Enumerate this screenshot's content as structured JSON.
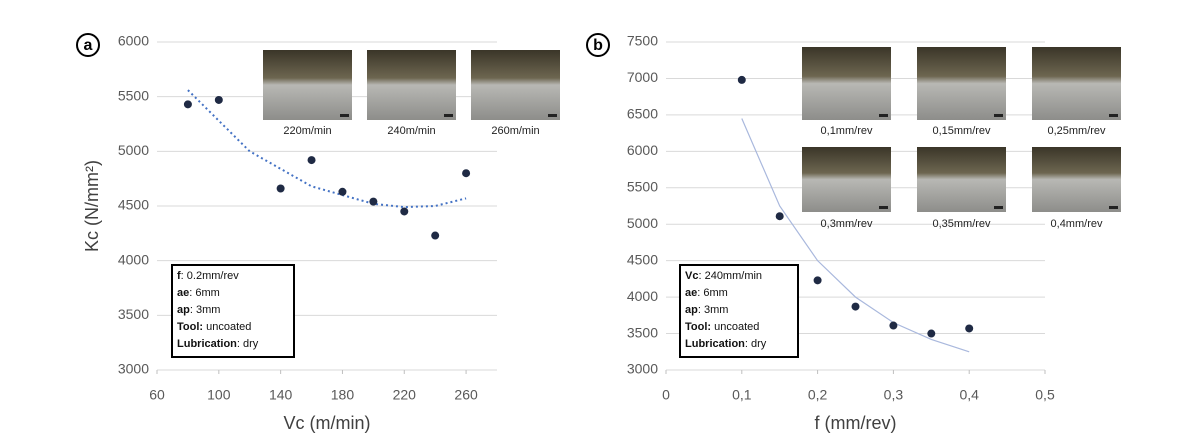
{
  "chart_data": [
    {
      "type": "scatter",
      "panel": "a",
      "xlabel": "Vc (m/min)",
      "ylabel": "Kc (N/mm²)",
      "x": [
        80,
        100,
        140,
        160,
        180,
        200,
        220,
        240,
        260
      ],
      "values": [
        5430,
        5470,
        4660,
        4920,
        4630,
        4540,
        4450,
        4230,
        4800
      ],
      "color": "#1f2a44",
      "trend": {
        "x": [
          80,
          120,
          160,
          200,
          220,
          240,
          260
        ],
        "values": [
          5560,
          5000,
          4680,
          4520,
          4490,
          4500,
          4570
        ],
        "color": "#4472c4",
        "dashed": true
      },
      "xlim": [
        60,
        280
      ],
      "xticks": [
        60,
        100,
        140,
        180,
        220,
        260
      ],
      "ylim": [
        3000,
        6000
      ],
      "yticks": [
        3000,
        3500,
        4000,
        4500,
        5000,
        5500,
        6000
      ],
      "grid": true,
      "conditions": [
        {
          "key": "f",
          "value": ": 0.2mm/rev"
        },
        {
          "key": "ae",
          "value": ": 6mm"
        },
        {
          "key": "ap",
          "value": ": 3mm"
        },
        {
          "key": "Tool:",
          "value": " uncoated"
        },
        {
          "key": "Lubrication",
          "value": ": dry"
        }
      ],
      "insets": [
        "220m/min",
        "240m/min",
        "260m/min"
      ]
    },
    {
      "type": "scatter",
      "panel": "b",
      "xlabel": "f (mm/rev)",
      "ylabel": null,
      "x": [
        0.1,
        0.15,
        0.2,
        0.25,
        0.3,
        0.35,
        0.4
      ],
      "values": [
        6980,
        5110,
        4230,
        3870,
        3610,
        3500,
        3570
      ],
      "color": "#1f2a44",
      "trend": {
        "x": [
          0.1,
          0.15,
          0.2,
          0.25,
          0.3,
          0.35,
          0.4
        ],
        "values": [
          6450,
          5250,
          4500,
          4000,
          3650,
          3420,
          3250
        ],
        "color": "#a9b8dd",
        "dashed": false
      },
      "xlim": [
        0,
        0.5
      ],
      "xticks": [
        0,
        {
          "value": 0.1,
          "label": "0,1"
        },
        {
          "value": 0.2,
          "label": "0,2"
        },
        {
          "value": 0.3,
          "label": "0,3"
        },
        {
          "value": 0.4,
          "label": "0,4"
        },
        {
          "value": 0.5,
          "label": "0,5"
        }
      ],
      "ylim": [
        3000,
        7500
      ],
      "yticks": [
        3000,
        3500,
        4000,
        4500,
        5000,
        5500,
        6000,
        6500,
        7000,
        7500
      ],
      "grid": true,
      "conditions": [
        {
          "key": "Vc",
          "value": ": 240mm/min"
        },
        {
          "key": "ae",
          "value": ": 6mm"
        },
        {
          "key": "ap",
          "value": ": 3mm"
        },
        {
          "key": "Tool:",
          "value": " uncoated"
        },
        {
          "key": "Lubrication",
          "value": ": dry"
        }
      ],
      "insets": [
        "0,1mm/rev",
        "0,15mm/rev",
        "0,25mm/rev",
        "0,3mm/rev",
        "0,35mm/rev",
        "0,4mm/rev"
      ]
    }
  ]
}
